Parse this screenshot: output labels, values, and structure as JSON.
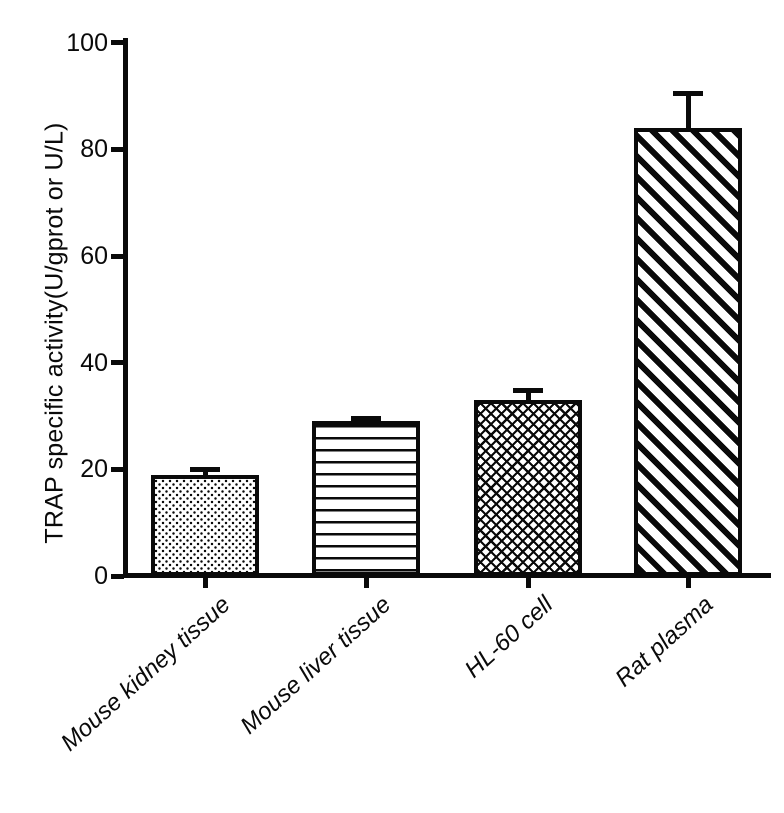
{
  "chart_data": {
    "type": "bar",
    "title": "",
    "categories": [
      "Mouse kidney tissue",
      "Mouse liver tissue",
      "HL-60 cell",
      "Rat plasma"
    ],
    "values": [
      19,
      29,
      33,
      84
    ],
    "errors": [
      1.5,
      1.0,
      2.3,
      7.0
    ],
    "error_direction": "upper-only",
    "patterns": [
      "dots",
      "horizontal-lines",
      "diagonal-crosshatch",
      "diagonal-stripes"
    ],
    "bar_fill": "#ffffff",
    "stroke_color": "#0a0a0a",
    "background": "#ffffff",
    "xlabel": "",
    "ylabel": "TRAP specific activity(U/gprot or U/L)",
    "ylim": [
      0,
      100
    ],
    "yticks": [
      "0",
      "20",
      "40",
      "60",
      "80",
      "100"
    ],
    "grid": false,
    "legend": false
  }
}
